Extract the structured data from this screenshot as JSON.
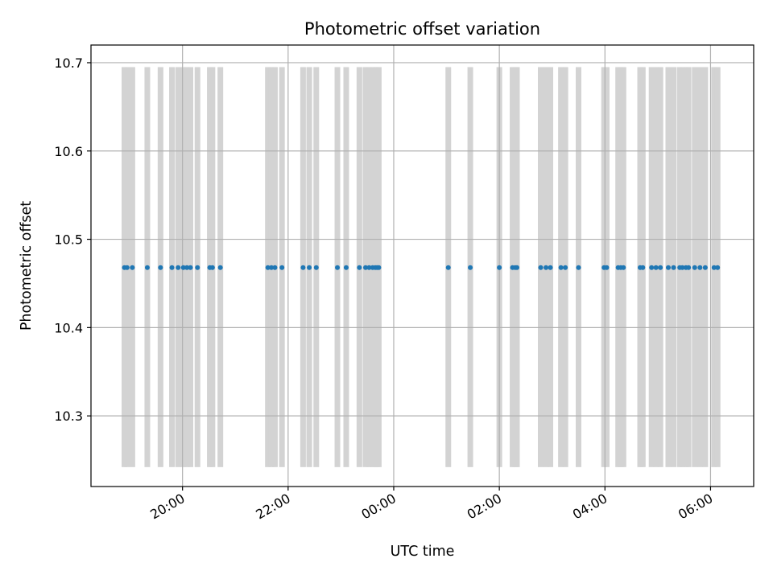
{
  "chart_data": {
    "type": "scatter",
    "title": "Photometric offset variation",
    "xlabel": "UTC time",
    "ylabel": "Photometric offset",
    "x_unit": "UTC time of night",
    "xlim": [
      "18:16",
      "06:49"
    ],
    "ylim": [
      10.22,
      10.72
    ],
    "x_ticks": [
      "20:00",
      "22:00",
      "00:00",
      "02:00",
      "04:00",
      "06:00"
    ],
    "y_ticks": [
      "10.3",
      "10.4",
      "10.5",
      "10.6",
      "10.7"
    ],
    "grid": true,
    "colors": {
      "points": "#1f77b4",
      "bands": "#d3d3d3",
      "grid": "#b0b0b0"
    },
    "band_range": [
      10.242,
      10.695
    ],
    "value": 10.468,
    "times": [
      "18:54",
      "18:57",
      "19:03",
      "19:20",
      "19:35",
      "19:48",
      "19:55",
      "20:01",
      "20:05",
      "20:09",
      "20:17",
      "20:31",
      "20:34",
      "20:43",
      "21:37",
      "21:41",
      "21:45",
      "21:53",
      "22:17",
      "22:24",
      "22:32",
      "22:56",
      "23:06",
      "23:21",
      "23:28",
      "23:32",
      "23:36",
      "23:39",
      "23:41",
      "23:43",
      "01:02",
      "01:27",
      "02:00",
      "02:15",
      "02:18",
      "02:20",
      "02:47",
      "02:53",
      "02:58",
      "03:10",
      "03:15",
      "03:30",
      "03:59",
      "04:02",
      "04:15",
      "04:18",
      "04:21",
      "04:40",
      "04:43",
      "04:53",
      "04:58",
      "05:03",
      "05:12",
      "05:18",
      "05:25",
      "05:28",
      "05:32",
      "05:35",
      "05:42",
      "05:48",
      "05:54",
      "06:04",
      "06:08"
    ]
  }
}
